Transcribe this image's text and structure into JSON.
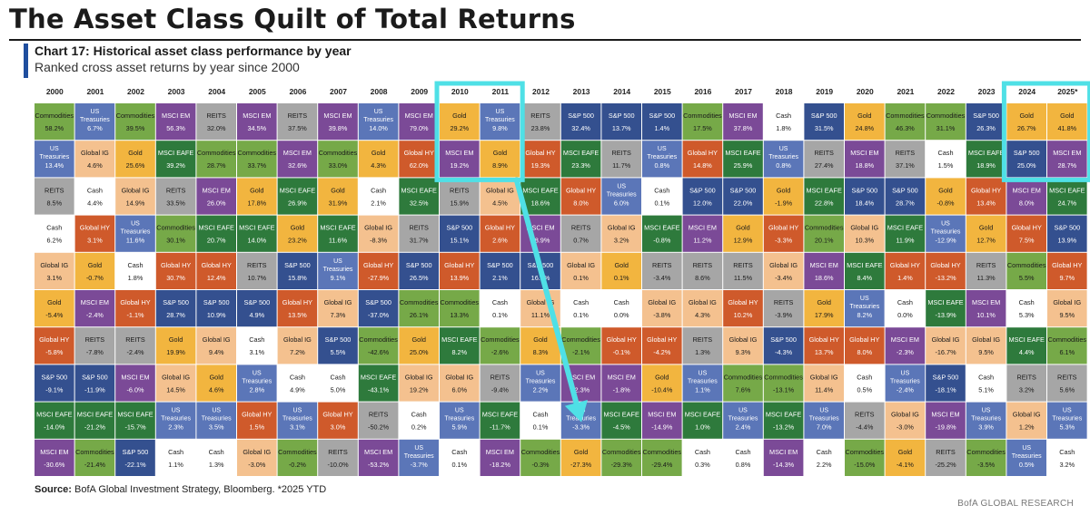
{
  "header": {
    "title": "The Asset Class Quilt of Total Returns",
    "chart_title": "Chart 17: Historical asset class performance by year",
    "chart_subtitle": "Ranked cross asset returns by year since 2000"
  },
  "footer": {
    "source_label": "Source:",
    "source_text": " BofA Global Investment Strategy, Bloomberg. *2025 YTD",
    "brand": "BofA GLOBAL RESEARCH"
  },
  "colors": {
    "Commodities": "#76a948",
    "US Treasuries": "#5b76b8",
    "Gold": "#f2b53f",
    "MSCI EM": "#7b4a97",
    "REITS": "#a6a6a6",
    "MSCI EAFE": "#2e7a3c",
    "S&P 500": "#34508f",
    "Global IG": "#f4c18f",
    "Global HY": "#cf5a2b",
    "Cash": "#ffffff",
    "highlight": "#4fe0e6"
  },
  "chart_data": {
    "type": "table",
    "years": [
      "2000",
      "2001",
      "2002",
      "2003",
      "2004",
      "2005",
      "2006",
      "2007",
      "2008",
      "2009",
      "2010",
      "2011",
      "2012",
      "2013",
      "2014",
      "2015",
      "2016",
      "2017",
      "2018",
      "2019",
      "2020",
      "2021",
      "2022",
      "2023",
      "2024",
      "2025*"
    ],
    "columns": [
      [
        [
          "Commodities",
          "58.2%"
        ],
        [
          "US Treasuries",
          "13.4%"
        ],
        [
          "REITS",
          "8.5%"
        ],
        [
          "Cash",
          "6.2%"
        ],
        [
          "Global IG",
          "3.1%"
        ],
        [
          "Gold",
          "-5.4%"
        ],
        [
          "Global HY",
          "-5.8%"
        ],
        [
          "S&P 500",
          "-9.1%"
        ],
        [
          "MSCI EAFE",
          "-14.0%"
        ],
        [
          "MSCI EM",
          "-30.6%"
        ]
      ],
      [
        [
          "US Treasuries",
          "6.7%"
        ],
        [
          "Global IG",
          "4.6%"
        ],
        [
          "Cash",
          "4.4%"
        ],
        [
          "Global HY",
          "3.1%"
        ],
        [
          "Gold",
          "-0.7%"
        ],
        [
          "MSCI EM",
          "-2.4%"
        ],
        [
          "REITS",
          "-7.8%"
        ],
        [
          "S&P 500",
          "-11.9%"
        ],
        [
          "MSCI EAFE",
          "-21.2%"
        ],
        [
          "Commodities",
          "-21.4%"
        ]
      ],
      [
        [
          "Commodities",
          "39.5%"
        ],
        [
          "Gold",
          "25.6%"
        ],
        [
          "Global IG",
          "14.9%"
        ],
        [
          "US Treasuries",
          "11.6%"
        ],
        [
          "Cash",
          "1.8%"
        ],
        [
          "Global HY",
          "-1.1%"
        ],
        [
          "REITS",
          "-2.4%"
        ],
        [
          "MSCI EM",
          "-6.0%"
        ],
        [
          "MSCI EAFE",
          "-15.7%"
        ],
        [
          "S&P 500",
          "-22.1%"
        ]
      ],
      [
        [
          "MSCI EM",
          "56.3%"
        ],
        [
          "MSCI EAFE",
          "39.2%"
        ],
        [
          "REITS",
          "33.5%"
        ],
        [
          "Commodities",
          "30.1%"
        ],
        [
          "Global HY",
          "30.7%"
        ],
        [
          "S&P 500",
          "28.7%"
        ],
        [
          "Gold",
          "19.9%"
        ],
        [
          "Global IG",
          "14.5%"
        ],
        [
          "US Treasuries",
          "2.3%"
        ],
        [
          "Cash",
          "1.1%"
        ]
      ],
      [
        [
          "REITS",
          "32.0%"
        ],
        [
          "Commodities",
          "28.7%"
        ],
        [
          "MSCI EM",
          "26.0%"
        ],
        [
          "MSCI EAFE",
          "20.7%"
        ],
        [
          "Global HY",
          "12.4%"
        ],
        [
          "S&P 500",
          "10.9%"
        ],
        [
          "Global IG",
          "9.4%"
        ],
        [
          "Gold",
          "4.6%"
        ],
        [
          "US Treasuries",
          "3.5%"
        ],
        [
          "Cash",
          "1.3%"
        ]
      ],
      [
        [
          "MSCI EM",
          "34.5%"
        ],
        [
          "Commodities",
          "33.7%"
        ],
        [
          "Gold",
          "17.8%"
        ],
        [
          "MSCI EAFE",
          "14.0%"
        ],
        [
          "REITS",
          "10.7%"
        ],
        [
          "S&P 500",
          "4.9%"
        ],
        [
          "Cash",
          "3.1%"
        ],
        [
          "US Treasuries",
          "2.8%"
        ],
        [
          "Global HY",
          "1.5%"
        ],
        [
          "Global IG",
          "-3.0%"
        ]
      ],
      [
        [
          "REITS",
          "37.5%"
        ],
        [
          "MSCI EM",
          "32.6%"
        ],
        [
          "MSCI EAFE",
          "26.9%"
        ],
        [
          "Gold",
          "23.2%"
        ],
        [
          "S&P 500",
          "15.8%"
        ],
        [
          "Global HY",
          "13.5%"
        ],
        [
          "Global IG",
          "7.2%"
        ],
        [
          "Cash",
          "4.9%"
        ],
        [
          "US Treasuries",
          "3.1%"
        ],
        [
          "Commodities",
          "-0.2%"
        ]
      ],
      [
        [
          "MSCI EM",
          "39.8%"
        ],
        [
          "Commodities",
          "33.0%"
        ],
        [
          "Gold",
          "31.9%"
        ],
        [
          "MSCI EAFE",
          "11.6%"
        ],
        [
          "US Treasuries",
          "9.1%"
        ],
        [
          "Global IG",
          "7.3%"
        ],
        [
          "S&P 500",
          "5.5%"
        ],
        [
          "Cash",
          "5.0%"
        ],
        [
          "Global HY",
          "3.0%"
        ],
        [
          "REITS",
          "-10.0%"
        ]
      ],
      [
        [
          "US Treasuries",
          "14.0%"
        ],
        [
          "Gold",
          "4.3%"
        ],
        [
          "Cash",
          "2.1%"
        ],
        [
          "Global IG",
          "-8.3%"
        ],
        [
          "Global HY",
          "-27.9%"
        ],
        [
          "S&P 500",
          "-37.0%"
        ],
        [
          "Commodities",
          "-42.6%"
        ],
        [
          "MSCI EAFE",
          "-43.1%"
        ],
        [
          "REITS",
          "-50.2%"
        ],
        [
          "MSCI EM",
          "-53.2%"
        ]
      ],
      [
        [
          "MSCI EM",
          "79.0%"
        ],
        [
          "Global HY",
          "62.0%"
        ],
        [
          "MSCI EAFE",
          "32.5%"
        ],
        [
          "REITS",
          "31.7%"
        ],
        [
          "S&P 500",
          "26.5%"
        ],
        [
          "Commodities",
          "26.1%"
        ],
        [
          "Gold",
          "25.0%"
        ],
        [
          "Global IG",
          "19.2%"
        ],
        [
          "Cash",
          "0.2%"
        ],
        [
          "US Treasuries",
          "-3.7%"
        ]
      ],
      [
        [
          "Gold",
          "29.2%"
        ],
        [
          "MSCI EM",
          "19.2%"
        ],
        [
          "REITS",
          "15.9%"
        ],
        [
          "S&P 500",
          "15.1%"
        ],
        [
          "Global HY",
          "13.9%"
        ],
        [
          "Commodities",
          "13.3%"
        ],
        [
          "MSCI EAFE",
          "8.2%"
        ],
        [
          "Global IG",
          "6.0%"
        ],
        [
          "US Treasuries",
          "5.9%"
        ],
        [
          "Cash",
          "0.1%"
        ]
      ],
      [
        [
          "US Treasuries",
          "9.8%"
        ],
        [
          "Gold",
          "8.9%"
        ],
        [
          "Global IG",
          "4.5%"
        ],
        [
          "Global HY",
          "2.6%"
        ],
        [
          "S&P 500",
          "2.1%"
        ],
        [
          "Cash",
          "0.1%"
        ],
        [
          "Commodities",
          "-2.6%"
        ],
        [
          "REITS",
          "-9.4%"
        ],
        [
          "MSCI EAFE",
          "-11.7%"
        ],
        [
          "MSCI EM",
          "-18.2%"
        ]
      ],
      [
        [
          "REITS",
          "23.8%"
        ],
        [
          "Global HY",
          "19.3%"
        ],
        [
          "MSCI EAFE",
          "18.6%"
        ],
        [
          "MSCI EM",
          "18.9%"
        ],
        [
          "S&P 500",
          "16.0%"
        ],
        [
          "Global IG",
          "11.1%"
        ],
        [
          "Gold",
          "8.3%"
        ],
        [
          "US Treasuries",
          "2.2%"
        ],
        [
          "Cash",
          "0.1%"
        ],
        [
          "Commodities",
          "-0.3%"
        ]
      ],
      [
        [
          "S&P 500",
          "32.4%"
        ],
        [
          "MSCI EAFE",
          "23.3%"
        ],
        [
          "Global HY",
          "8.0%"
        ],
        [
          "REITS",
          "0.7%"
        ],
        [
          "Global IG",
          "0.1%"
        ],
        [
          "Cash",
          "0.1%"
        ],
        [
          "Commodities",
          "-2.1%"
        ],
        [
          "MSCI EM",
          "-2.3%"
        ],
        [
          "US Treasuries",
          "-3.3%"
        ],
        [
          "Gold",
          "-27.3%"
        ]
      ],
      [
        [
          "S&P 500",
          "13.7%"
        ],
        [
          "REITS",
          "11.7%"
        ],
        [
          "US Treasuries",
          "6.0%"
        ],
        [
          "Global IG",
          "3.2%"
        ],
        [
          "Gold",
          "0.1%"
        ],
        [
          "Cash",
          "0.0%"
        ],
        [
          "Global HY",
          "-0.1%"
        ],
        [
          "MSCI EM",
          "-1.8%"
        ],
        [
          "MSCI EAFE",
          "-4.5%"
        ],
        [
          "Commodities",
          "-29.3%"
        ]
      ],
      [
        [
          "S&P 500",
          "1.4%"
        ],
        [
          "US Treasuries",
          "0.8%"
        ],
        [
          "Cash",
          "0.1%"
        ],
        [
          "MSCI EAFE",
          "-0.8%"
        ],
        [
          "REITS",
          "-3.4%"
        ],
        [
          "Global IG",
          "-3.8%"
        ],
        [
          "Global HY",
          "-4.2%"
        ],
        [
          "Gold",
          "-10.4%"
        ],
        [
          "MSCI EM",
          "-14.9%"
        ],
        [
          "Commodities",
          "-29.4%"
        ]
      ],
      [
        [
          "Commodities",
          "17.5%"
        ],
        [
          "Global HY",
          "14.8%"
        ],
        [
          "S&P 500",
          "12.0%"
        ],
        [
          "MSCI EM",
          "11.2%"
        ],
        [
          "REITS",
          "8.6%"
        ],
        [
          "Global IG",
          "4.3%"
        ],
        [
          "REITS",
          "1.3%"
        ],
        [
          "US Treasuries",
          "1.1%"
        ],
        [
          "MSCI EAFE",
          "1.0%"
        ],
        [
          "Cash",
          "0.3%"
        ]
      ],
      [
        [
          "MSCI EM",
          "37.8%"
        ],
        [
          "MSCI EAFE",
          "25.9%"
        ],
        [
          "S&P 500",
          "22.0%"
        ],
        [
          "Gold",
          "12.9%"
        ],
        [
          "REITS",
          "11.5%"
        ],
        [
          "Global HY",
          "10.2%"
        ],
        [
          "Global IG",
          "9.3%"
        ],
        [
          "Commodities",
          "7.6%"
        ],
        [
          "US Treasuries",
          "2.4%"
        ],
        [
          "Cash",
          "0.8%"
        ]
      ],
      [
        [
          "Cash",
          "1.8%"
        ],
        [
          "US Treasuries",
          "0.8%"
        ],
        [
          "Gold",
          "-1.9%"
        ],
        [
          "Global HY",
          "-3.3%"
        ],
        [
          "Global IG",
          "-3.4%"
        ],
        [
          "REITS",
          "-3.9%"
        ],
        [
          "S&P 500",
          "-4.3%"
        ],
        [
          "Commodities",
          "-13.1%"
        ],
        [
          "MSCI EAFE",
          "-13.2%"
        ],
        [
          "MSCI EM",
          "-14.3%"
        ]
      ],
      [
        [
          "S&P 500",
          "31.5%"
        ],
        [
          "REITS",
          "27.4%"
        ],
        [
          "MSCI EAFE",
          "22.8%"
        ],
        [
          "Commodities",
          "20.1%"
        ],
        [
          "MSCI EM",
          "18.6%"
        ],
        [
          "Gold",
          "17.9%"
        ],
        [
          "Global HY",
          "13.7%"
        ],
        [
          "Global IG",
          "11.4%"
        ],
        [
          "US Treasuries",
          "7.0%"
        ],
        [
          "Cash",
          "2.2%"
        ]
      ],
      [
        [
          "Gold",
          "24.8%"
        ],
        [
          "MSCI EM",
          "18.8%"
        ],
        [
          "S&P 500",
          "18.4%"
        ],
        [
          "Global IG",
          "10.3%"
        ],
        [
          "MSCI EAFE",
          "8.4%"
        ],
        [
          "US Treasuries",
          "8.2%"
        ],
        [
          "Global HY",
          "8.0%"
        ],
        [
          "Cash",
          "0.5%"
        ],
        [
          "REITS",
          "-4.4%"
        ],
        [
          "Commodities",
          "-15.0%"
        ]
      ],
      [
        [
          "Commodities",
          "46.3%"
        ],
        [
          "REITS",
          "37.1%"
        ],
        [
          "S&P 500",
          "28.7%"
        ],
        [
          "MSCI EAFE",
          "11.9%"
        ],
        [
          "Global HY",
          "1.4%"
        ],
        [
          "Cash",
          "0.0%"
        ],
        [
          "MSCI EM",
          "-2.3%"
        ],
        [
          "US Treasuries",
          "-2.4%"
        ],
        [
          "Global IG",
          "-3.0%"
        ],
        [
          "Gold",
          "-4.1%"
        ]
      ],
      [
        [
          "Commodities",
          "31.1%"
        ],
        [
          "Cash",
          "1.5%"
        ],
        [
          "Gold",
          "-0.8%"
        ],
        [
          "US Treasuries",
          "-12.9%"
        ],
        [
          "Global HY",
          "-13.2%"
        ],
        [
          "MSCI EAFE",
          "-13.9%"
        ],
        [
          "Global IG",
          "-16.7%"
        ],
        [
          "S&P 500",
          "-18.1%"
        ],
        [
          "MSCI EM",
          "-19.8%"
        ],
        [
          "REITS",
          "-25.2%"
        ]
      ],
      [
        [
          "S&P 500",
          "26.3%"
        ],
        [
          "MSCI EAFE",
          "18.9%"
        ],
        [
          "Global HY",
          "13.4%"
        ],
        [
          "Gold",
          "12.7%"
        ],
        [
          "REITS",
          "11.3%"
        ],
        [
          "MSCI EM",
          "10.1%"
        ],
        [
          "Global IG",
          "9.5%"
        ],
        [
          "Cash",
          "5.1%"
        ],
        [
          "US Treasuries",
          "3.9%"
        ],
        [
          "Commodities",
          "-3.5%"
        ]
      ],
      [
        [
          "Gold",
          "26.7%"
        ],
        [
          "S&P 500",
          "25.0%"
        ],
        [
          "MSCI EM",
          "8.0%"
        ],
        [
          "Global HY",
          "7.5%"
        ],
        [
          "Commodities",
          "5.5%"
        ],
        [
          "Cash",
          "5.3%"
        ],
        [
          "MSCI EAFE",
          "4.4%"
        ],
        [
          "REITS",
          "3.2%"
        ],
        [
          "Global IG",
          "1.2%"
        ],
        [
          "US Treasuries",
          "0.5%"
        ]
      ],
      [
        [
          "Gold",
          "41.8%"
        ],
        [
          "MSCI EM",
          "28.7%"
        ],
        [
          "MSCI EAFE",
          "24.7%"
        ],
        [
          "S&P 500",
          "13.9%"
        ],
        [
          "Global HY",
          "9.7%"
        ],
        [
          "Global IG",
          "9.5%"
        ],
        [
          "Commodities",
          "6.1%"
        ],
        [
          "REITS",
          "5.6%"
        ],
        [
          "US Treasuries",
          "5.3%"
        ],
        [
          "Cash",
          "3.2%"
        ]
      ]
    ],
    "highlights": [
      [
        "2010",
        "2011"
      ],
      [
        "2024",
        "2025*"
      ]
    ]
  }
}
